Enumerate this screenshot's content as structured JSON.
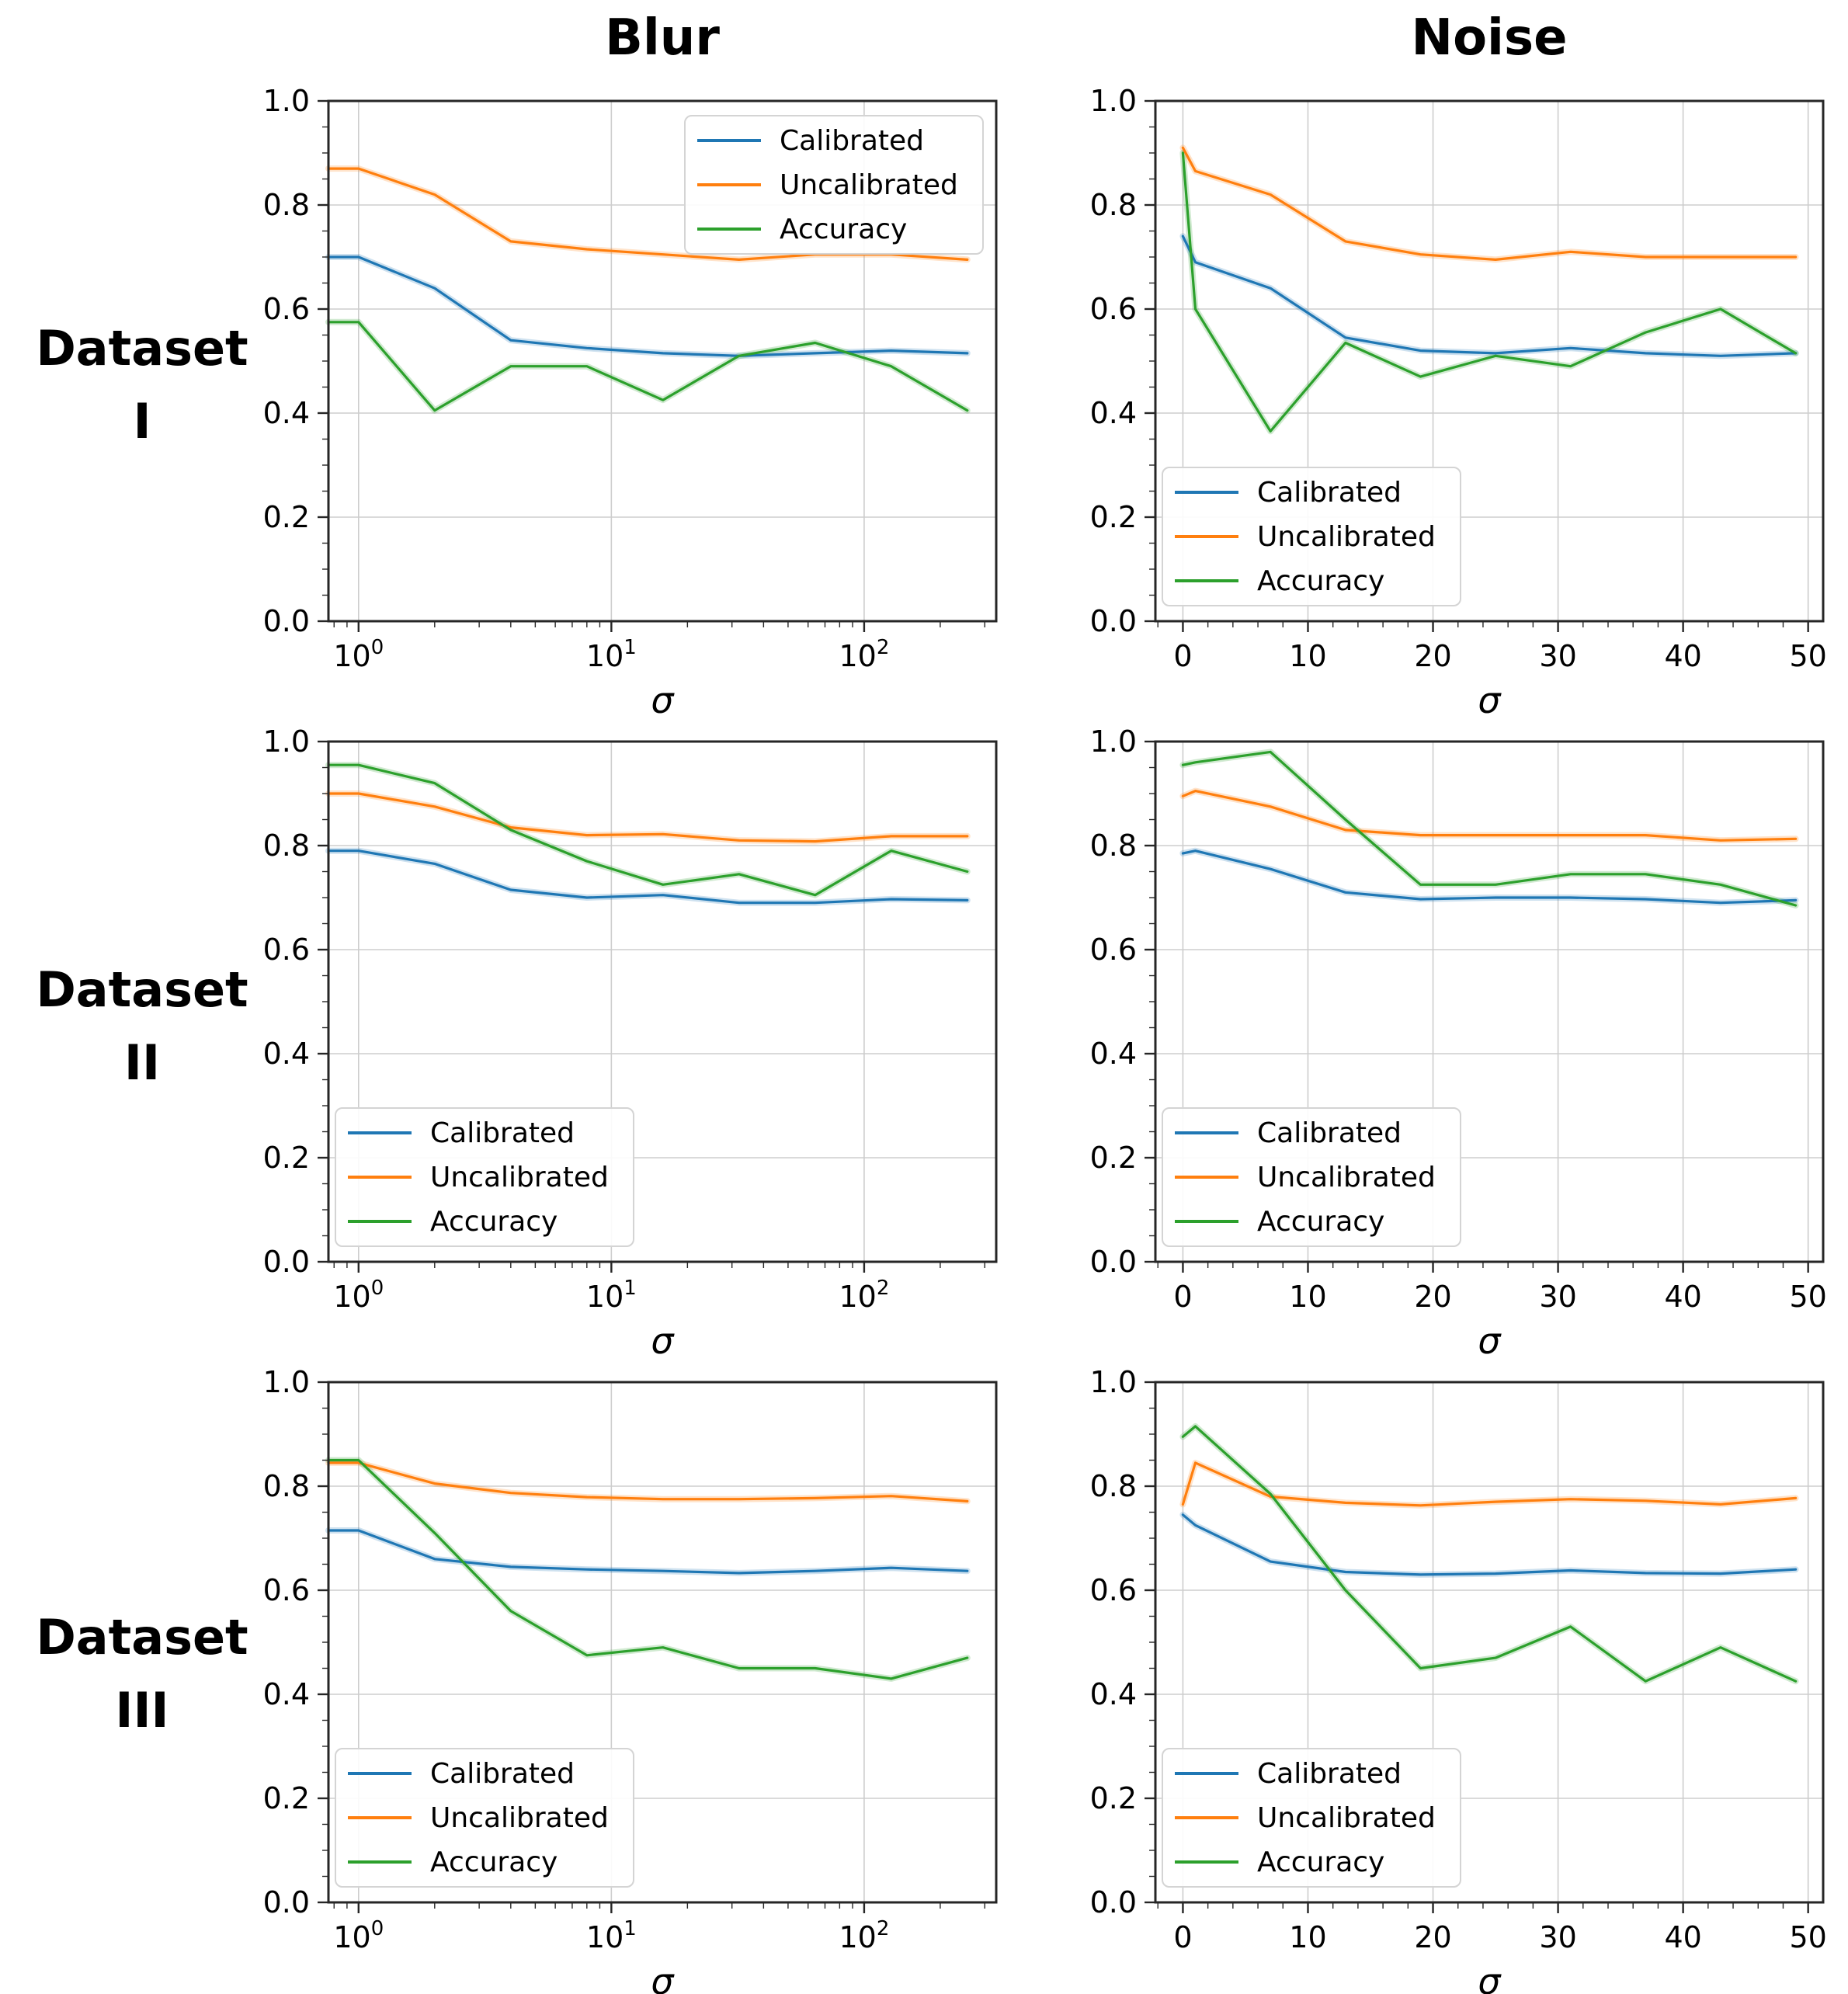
{
  "figure": {
    "background": "#ffffff",
    "col_titles": [
      {
        "label": "Blur"
      },
      {
        "label": "Noise"
      }
    ],
    "row_labels": [
      {
        "line1": "Dataset",
        "line2": "I"
      },
      {
        "line1": "Dataset",
        "line2": "II"
      },
      {
        "line1": "Dataset",
        "line2": "III"
      }
    ],
    "xlabel": "σ",
    "legend_labels": [
      "Calibrated",
      "Uncalibrated",
      "Accuracy"
    ],
    "colors": {
      "calibrated": "#1f77b4",
      "uncalibrated": "#ff7f0e",
      "accuracy": "#2ca02c"
    },
    "grid_color": "#cdcdcd",
    "spine_color": "#262626",
    "yticks": [
      {
        "v": 0.0,
        "label": "0.0"
      },
      {
        "v": 0.2,
        "label": "0.2"
      },
      {
        "v": 0.4,
        "label": "0.4"
      },
      {
        "v": 0.6,
        "label": "0.6"
      },
      {
        "v": 0.8,
        "label": "0.8"
      },
      {
        "v": 1.0,
        "label": "1.0"
      }
    ]
  },
  "chart_data": [
    {
      "id": "blur-dataset-1",
      "row": "Dataset I",
      "col": "Blur",
      "type": "line",
      "xscale": "log",
      "xlim": [
        0.76,
        333
      ],
      "ylim": [
        0,
        1
      ],
      "xlabel": "σ",
      "grid": true,
      "legend_pos": "upper-right",
      "xticks": [
        {
          "v": 1,
          "base": "10",
          "exp": "0"
        },
        {
          "v": 10,
          "base": "10",
          "exp": "1"
        },
        {
          "v": 100,
          "base": "10",
          "exp": "2"
        }
      ],
      "x": [
        0.76,
        1,
        2,
        4,
        8,
        16,
        32,
        64,
        128,
        256
      ],
      "series": [
        {
          "name": "Calibrated",
          "color": "#1f77b4",
          "values": [
            0.7,
            0.7,
            0.64,
            0.54,
            0.525,
            0.515,
            0.51,
            0.515,
            0.52,
            0.515
          ]
        },
        {
          "name": "Uncalibrated",
          "color": "#ff7f0e",
          "values": [
            0.87,
            0.87,
            0.82,
            0.73,
            0.715,
            0.705,
            0.695,
            0.705,
            0.705,
            0.695
          ]
        },
        {
          "name": "Accuracy",
          "color": "#2ca02c",
          "values": [
            0.575,
            0.575,
            0.405,
            0.49,
            0.49,
            0.425,
            0.51,
            0.535,
            0.49,
            0.405
          ]
        }
      ]
    },
    {
      "id": "noise-dataset-1",
      "row": "Dataset I",
      "col": "Noise",
      "type": "line",
      "xscale": "linear",
      "xlim": [
        -2.2,
        51.2
      ],
      "ylim": [
        0,
        1
      ],
      "xlabel": "σ",
      "grid": true,
      "legend_pos": "lower-left",
      "xticks": [
        {
          "v": 0,
          "label": "0"
        },
        {
          "v": 10,
          "label": "10"
        },
        {
          "v": 20,
          "label": "20"
        },
        {
          "v": 30,
          "label": "30"
        },
        {
          "v": 40,
          "label": "40"
        },
        {
          "v": 50,
          "label": "50"
        }
      ],
      "x": [
        0,
        1,
        7,
        13,
        19,
        25,
        31,
        37,
        43,
        49
      ],
      "series": [
        {
          "name": "Calibrated",
          "color": "#1f77b4",
          "values": [
            0.74,
            0.69,
            0.64,
            0.545,
            0.52,
            0.515,
            0.525,
            0.515,
            0.51,
            0.515
          ]
        },
        {
          "name": "Uncalibrated",
          "color": "#ff7f0e",
          "values": [
            0.91,
            0.865,
            0.82,
            0.73,
            0.705,
            0.695,
            0.71,
            0.7,
            0.7,
            0.7
          ]
        },
        {
          "name": "Accuracy",
          "color": "#2ca02c",
          "values": [
            0.9,
            0.6,
            0.365,
            0.535,
            0.47,
            0.51,
            0.49,
            0.555,
            0.6,
            0.515
          ]
        }
      ]
    },
    {
      "id": "blur-dataset-2",
      "row": "Dataset II",
      "col": "Blur",
      "type": "line",
      "xscale": "log",
      "xlim": [
        0.76,
        333
      ],
      "ylim": [
        0,
        1
      ],
      "xlabel": "σ",
      "grid": true,
      "legend_pos": "lower-left",
      "xticks": [
        {
          "v": 1,
          "base": "10",
          "exp": "0"
        },
        {
          "v": 10,
          "base": "10",
          "exp": "1"
        },
        {
          "v": 100,
          "base": "10",
          "exp": "2"
        }
      ],
      "x": [
        0.76,
        1,
        2,
        4,
        8,
        16,
        32,
        64,
        128,
        256
      ],
      "series": [
        {
          "name": "Calibrated",
          "color": "#1f77b4",
          "values": [
            0.79,
            0.79,
            0.765,
            0.715,
            0.7,
            0.705,
            0.69,
            0.69,
            0.697,
            0.695
          ]
        },
        {
          "name": "Uncalibrated",
          "color": "#ff7f0e",
          "values": [
            0.9,
            0.9,
            0.875,
            0.835,
            0.82,
            0.822,
            0.81,
            0.808,
            0.818,
            0.818
          ]
        },
        {
          "name": "Accuracy",
          "color": "#2ca02c",
          "values": [
            0.955,
            0.955,
            0.92,
            0.83,
            0.77,
            0.725,
            0.745,
            0.705,
            0.79,
            0.75
          ]
        }
      ]
    },
    {
      "id": "noise-dataset-2",
      "row": "Dataset II",
      "col": "Noise",
      "type": "line",
      "xscale": "linear",
      "xlim": [
        -2.2,
        51.2
      ],
      "ylim": [
        0,
        1
      ],
      "xlabel": "σ",
      "grid": true,
      "legend_pos": "lower-left",
      "xticks": [
        {
          "v": 0,
          "label": "0"
        },
        {
          "v": 10,
          "label": "10"
        },
        {
          "v": 20,
          "label": "20"
        },
        {
          "v": 30,
          "label": "30"
        },
        {
          "v": 40,
          "label": "40"
        },
        {
          "v": 50,
          "label": "50"
        }
      ],
      "x": [
        0,
        1,
        7,
        13,
        19,
        25,
        31,
        37,
        43,
        49
      ],
      "series": [
        {
          "name": "Calibrated",
          "color": "#1f77b4",
          "values": [
            0.785,
            0.79,
            0.755,
            0.71,
            0.697,
            0.7,
            0.7,
            0.697,
            0.69,
            0.695
          ]
        },
        {
          "name": "Uncalibrated",
          "color": "#ff7f0e",
          "values": [
            0.895,
            0.905,
            0.875,
            0.83,
            0.82,
            0.82,
            0.82,
            0.82,
            0.81,
            0.813
          ]
        },
        {
          "name": "Accuracy",
          "color": "#2ca02c",
          "values": [
            0.955,
            0.96,
            0.98,
            0.85,
            0.725,
            0.725,
            0.745,
            0.745,
            0.725,
            0.685
          ]
        }
      ]
    },
    {
      "id": "blur-dataset-3",
      "row": "Dataset III",
      "col": "Blur",
      "type": "line",
      "xscale": "log",
      "xlim": [
        0.76,
        333
      ],
      "ylim": [
        0,
        1
      ],
      "xlabel": "σ",
      "grid": true,
      "legend_pos": "lower-left",
      "xticks": [
        {
          "v": 1,
          "base": "10",
          "exp": "0"
        },
        {
          "v": 10,
          "base": "10",
          "exp": "1"
        },
        {
          "v": 100,
          "base": "10",
          "exp": "2"
        }
      ],
      "x": [
        0.76,
        1,
        2,
        4,
        8,
        16,
        32,
        64,
        128,
        256
      ],
      "series": [
        {
          "name": "Calibrated",
          "color": "#1f77b4",
          "values": [
            0.715,
            0.715,
            0.66,
            0.645,
            0.64,
            0.637,
            0.633,
            0.637,
            0.643,
            0.637
          ]
        },
        {
          "name": "Uncalibrated",
          "color": "#ff7f0e",
          "values": [
            0.845,
            0.845,
            0.805,
            0.787,
            0.779,
            0.775,
            0.775,
            0.777,
            0.781,
            0.771
          ]
        },
        {
          "name": "Accuracy",
          "color": "#2ca02c",
          "values": [
            0.85,
            0.85,
            0.71,
            0.56,
            0.475,
            0.49,
            0.45,
            0.45,
            0.43,
            0.47
          ]
        }
      ]
    },
    {
      "id": "noise-dataset-3",
      "row": "Dataset III",
      "col": "Noise",
      "type": "line",
      "xscale": "linear",
      "xlim": [
        -2.2,
        51.2
      ],
      "ylim": [
        0,
        1
      ],
      "xlabel": "σ",
      "grid": true,
      "legend_pos": "lower-left",
      "xticks": [
        {
          "v": 0,
          "label": "0"
        },
        {
          "v": 10,
          "label": "10"
        },
        {
          "v": 20,
          "label": "20"
        },
        {
          "v": 30,
          "label": "30"
        },
        {
          "v": 40,
          "label": "40"
        },
        {
          "v": 50,
          "label": "50"
        }
      ],
      "x": [
        0,
        1,
        7,
        13,
        19,
        25,
        31,
        37,
        43,
        49
      ],
      "series": [
        {
          "name": "Calibrated",
          "color": "#1f77b4",
          "values": [
            0.745,
            0.725,
            0.655,
            0.635,
            0.63,
            0.632,
            0.638,
            0.633,
            0.632,
            0.64
          ]
        },
        {
          "name": "Uncalibrated",
          "color": "#ff7f0e",
          "values": [
            0.765,
            0.845,
            0.78,
            0.768,
            0.763,
            0.77,
            0.775,
            0.772,
            0.765,
            0.777
          ]
        },
        {
          "name": "Accuracy",
          "color": "#2ca02c",
          "values": [
            0.895,
            0.915,
            0.785,
            0.6,
            0.45,
            0.47,
            0.53,
            0.425,
            0.49,
            0.425
          ]
        }
      ]
    }
  ]
}
